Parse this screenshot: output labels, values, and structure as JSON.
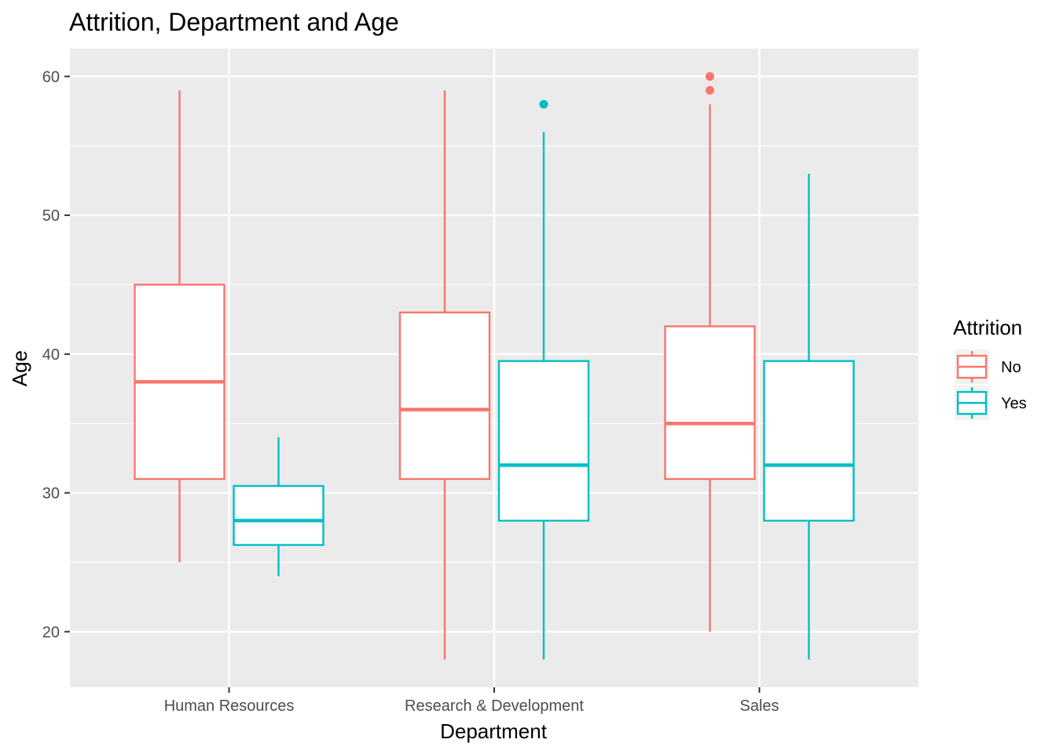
{
  "chart_data": {
    "type": "boxplot",
    "title": "Attrition, Department and Age",
    "xlabel": "Department",
    "ylabel": "Age",
    "categories": [
      "Human Resources",
      "Research & Development",
      "Sales"
    ],
    "ylim": [
      16,
      62
    ],
    "yticks": [
      20,
      30,
      40,
      50,
      60
    ],
    "grid": true,
    "legend": {
      "title": "Attrition",
      "position": "right"
    },
    "series": [
      {
        "name": "No",
        "color": "#F8766D",
        "boxes": [
          {
            "category": "Human Resources",
            "min": 25,
            "q1": 31,
            "median": 38,
            "q3": 45,
            "max": 59,
            "outliers": []
          },
          {
            "category": "Research & Development",
            "min": 18,
            "q1": 31,
            "median": 36,
            "q3": 43,
            "max": 59,
            "outliers": []
          },
          {
            "category": "Sales",
            "min": 20,
            "q1": 31,
            "median": 35,
            "q3": 42,
            "max": 58,
            "outliers": [
              59,
              60
            ]
          }
        ]
      },
      {
        "name": "Yes",
        "color": "#00BFC4",
        "boxes": [
          {
            "category": "Human Resources",
            "min": 24,
            "q1": 26.25,
            "median": 28,
            "q3": 30.5,
            "max": 34,
            "outliers": []
          },
          {
            "category": "Research & Development",
            "min": 18,
            "q1": 28,
            "median": 32,
            "q3": 39.5,
            "max": 56,
            "outliers": [
              58
            ]
          },
          {
            "category": "Sales",
            "min": 18,
            "q1": 28,
            "median": 32,
            "q3": 39.5,
            "max": 53,
            "outliers": []
          }
        ]
      }
    ]
  }
}
